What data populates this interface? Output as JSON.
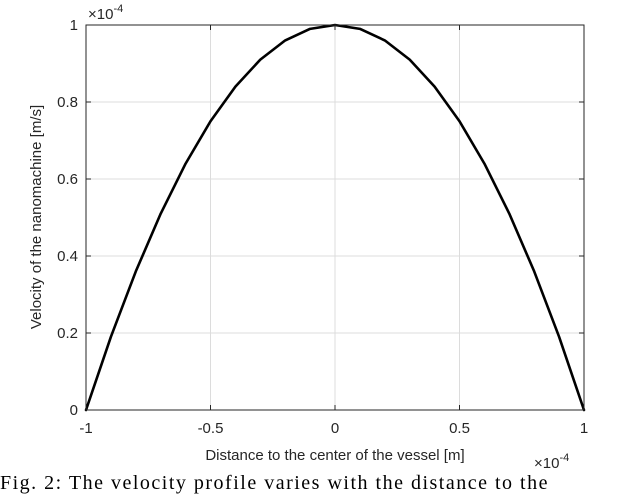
{
  "chart_data": {
    "type": "line",
    "title": "",
    "xlabel": "Distance to the center of the vessel [m]",
    "ylabel": "Velocity of the nanomachine [m/s]",
    "x_multiplier_label": "×10",
    "x_multiplier_exp": "-4",
    "y_multiplier_label": "×10",
    "y_multiplier_exp": "-4",
    "xlim": [
      -1,
      1
    ],
    "ylim": [
      0,
      1
    ],
    "x_ticks": [
      -1,
      -0.5,
      0,
      0.5,
      1
    ],
    "x_tick_labels": [
      "-1",
      "-0.5",
      "0",
      "0.5",
      "1"
    ],
    "y_ticks": [
      0,
      0.2,
      0.4,
      0.6,
      0.8,
      1
    ],
    "y_tick_labels": [
      "0",
      "0.2",
      "0.4",
      "0.6",
      "0.8",
      "1"
    ],
    "grid": true,
    "series": [
      {
        "color": "#000000",
        "x": [
          -1,
          -0.9,
          -0.8,
          -0.7,
          -0.6,
          -0.5,
          -0.4,
          -0.3,
          -0.2,
          -0.1,
          0,
          0.1,
          0.2,
          0.3,
          0.4,
          0.5,
          0.6,
          0.7,
          0.8,
          0.9,
          1
        ],
        "y": [
          0,
          0.19,
          0.36,
          0.51,
          0.64,
          0.75,
          0.84,
          0.91,
          0.96,
          0.99,
          1,
          0.99,
          0.96,
          0.91,
          0.84,
          0.75,
          0.64,
          0.51,
          0.36,
          0.19,
          0
        ]
      }
    ]
  },
  "caption": "Fig. 2: The velocity profile varies with the distance to the"
}
